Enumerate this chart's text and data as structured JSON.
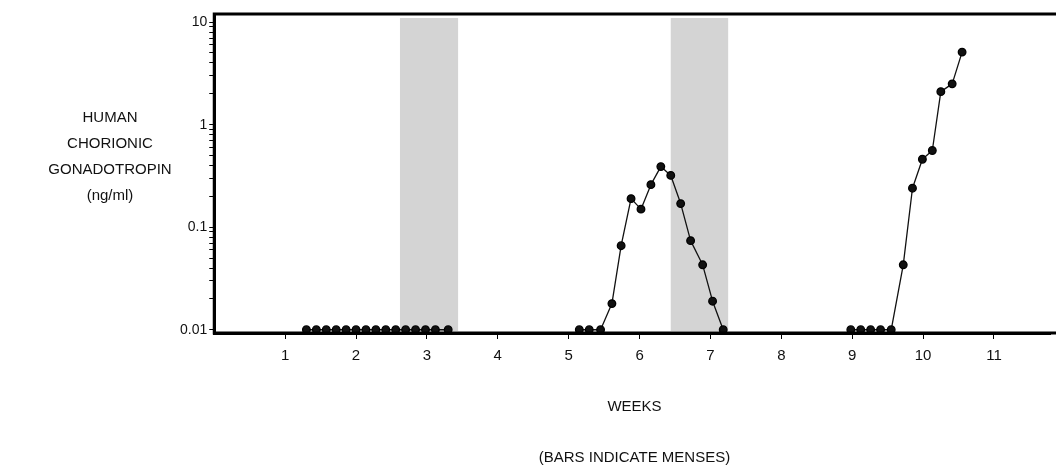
{
  "chart_data": {
    "type": "line",
    "xlabel": "WEEKS",
    "ylabel": "HUMAN CHORIONIC GONADOTROPIN (ng/ml)",
    "annotations": [
      "(BARS INDICATE MENSES)"
    ],
    "log": "y",
    "grid": false,
    "legend": false,
    "marker": "circle",
    "line_style": "solid",
    "xlim": [
      0,
      11.8
    ],
    "xticks": [
      1,
      2,
      3,
      4,
      5,
      6,
      7,
      8,
      9,
      10,
      11
    ],
    "ylim": [
      0.0093,
      12
    ],
    "yticks": [
      0.01,
      {
        "value": 0.02,
        "label": null
      },
      {
        "value": 0.03,
        "label": null
      },
      {
        "value": 0.04,
        "label": null
      },
      {
        "value": 0.05,
        "label": null
      },
      {
        "value": 0.06,
        "label": null
      },
      {
        "value": 0.07,
        "label": null
      },
      {
        "value": 0.08,
        "label": null
      },
      {
        "value": 0.09,
        "label": null
      },
      0.1,
      {
        "value": 0.2,
        "label": null
      },
      {
        "value": 0.3,
        "label": null
      },
      {
        "value": 0.4,
        "label": null
      },
      {
        "value": 0.5,
        "label": null
      },
      {
        "value": 0.6,
        "label": null
      },
      {
        "value": 0.7,
        "label": null
      },
      {
        "value": 0.8,
        "label": null
      },
      {
        "value": 0.9,
        "label": null
      },
      1,
      {
        "value": 2,
        "label": null
      },
      {
        "value": 3,
        "label": null
      },
      {
        "value": 4,
        "label": null
      },
      {
        "value": 5,
        "label": null
      },
      {
        "value": 6,
        "label": null
      },
      {
        "value": 7,
        "label": null
      },
      {
        "value": 8,
        "label": null
      },
      {
        "value": 9,
        "label": null
      },
      10
    ],
    "bands": [
      {
        "axis": "x",
        "from": 2.62,
        "to": 3.44,
        "color": "#d4d4d4"
      },
      {
        "axis": "x",
        "from": 6.44,
        "to": 7.25,
        "color": "#d4d4d4"
      }
    ],
    "series": [
      {
        "color": "#111111",
        "x": [
          1.3,
          1.44,
          1.58,
          1.72,
          1.86,
          2.0,
          2.14,
          2.28,
          2.42,
          2.56,
          2.7,
          2.84,
          2.98,
          3.12,
          3.3
        ],
        "values": [
          0.01,
          0.01,
          0.01,
          0.01,
          0.01,
          0.01,
          0.01,
          0.01,
          0.01,
          0.01,
          0.01,
          0.01,
          0.01,
          0.01,
          0.01
        ]
      },
      {
        "color": "#111111",
        "x": [
          5.15,
          5.29,
          5.45,
          5.61,
          5.74,
          5.88,
          6.02,
          6.16,
          6.3,
          6.44,
          6.58,
          6.72,
          6.89,
          7.03,
          7.18
        ],
        "values": [
          0.01,
          0.01,
          0.01,
          0.018,
          0.066,
          0.19,
          0.15,
          0.26,
          0.39,
          0.32,
          0.17,
          0.074,
          0.043,
          0.019,
          0.01
        ]
      },
      {
        "color": "#111111",
        "x": [
          8.98,
          9.12,
          9.26,
          9.4,
          9.55,
          9.72,
          9.85,
          9.99,
          10.13,
          10.25,
          10.41,
          10.55
        ],
        "values": [
          0.01,
          0.01,
          0.01,
          0.01,
          0.01,
          0.043,
          0.24,
          0.46,
          0.56,
          2.1,
          2.5,
          5.1
        ]
      }
    ]
  }
}
